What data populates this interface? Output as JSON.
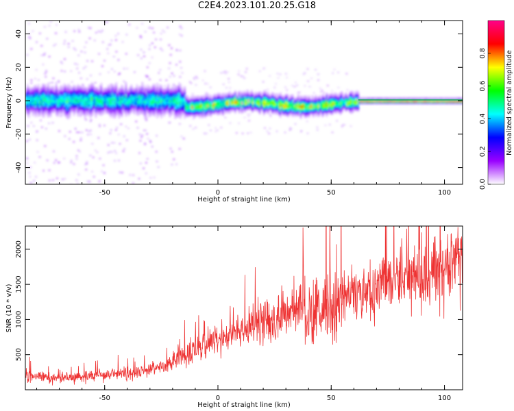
{
  "title": "C2E4.2023.101.20.25.G18",
  "chart_data": [
    {
      "type": "heatmap",
      "xlabel": "Height of straight line (km)",
      "ylabel": "Frequency (Hz)",
      "xlim": [
        -85,
        108
      ],
      "ylim": [
        -50,
        48
      ],
      "xticks": [
        "-50",
        "0",
        "50",
        "100"
      ],
      "yticks": [
        "-40",
        "-20",
        "0",
        "20",
        "40"
      ],
      "colorbar": {
        "label": "Normalized spectral amplitude",
        "range": [
          0,
          1
        ],
        "ticks": [
          "0.0",
          "0.2",
          "0.4",
          "0.6",
          "0.8"
        ],
        "colors": [
          "#ffffff",
          "#9900ff",
          "#0000ff",
          "#00ffff",
          "#00ff00",
          "#ffff00",
          "#ff0000",
          "#ff0088"
        ]
      }
    },
    {
      "type": "line",
      "xlabel": "Height of straight line (km)",
      "ylabel": "SNR (10 * v/v)",
      "xlim": [
        -85,
        108
      ],
      "ylim": [
        0,
        2330
      ],
      "xticks": [
        "-50",
        "0",
        "50",
        "100"
      ],
      "yticks": [
        "500",
        "1000",
        "1500",
        "2000"
      ],
      "color": "#ee3333",
      "trend": {
        "x": [
          -85,
          -75,
          -65,
          -55,
          -45,
          -35,
          -25,
          -15,
          -5,
          5,
          15,
          25,
          35,
          45,
          55,
          65,
          75,
          85,
          95,
          108
        ],
        "y": [
          200,
          170,
          160,
          200,
          230,
          240,
          320,
          500,
          640,
          760,
          900,
          1000,
          1100,
          1200,
          1300,
          1400,
          1500,
          1600,
          1700,
          1870
        ]
      }
    }
  ]
}
